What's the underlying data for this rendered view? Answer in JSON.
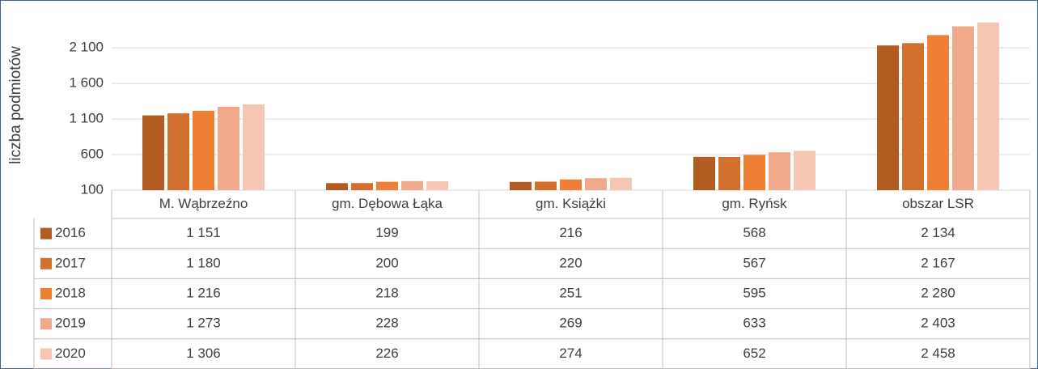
{
  "chart_data": {
    "type": "bar",
    "y_label": "liczba podmiotów",
    "categories": [
      "M. Wąbrzeźno",
      "gm. Dębowa Łąka",
      "gm. Książki",
      "gm. Ryńsk",
      "obszar LSR"
    ],
    "series": [
      {
        "name": "2016",
        "color": "#b35c22",
        "values": [
          1151,
          199,
          216,
          568,
          2134
        ],
        "value_labels": [
          "1 151",
          "199",
          "216",
          "568",
          "2 134"
        ]
      },
      {
        "name": "2017",
        "color": "#d2702e",
        "values": [
          1180,
          200,
          220,
          567,
          2167
        ],
        "value_labels": [
          "1 180",
          "200",
          "220",
          "567",
          "2 167"
        ]
      },
      {
        "name": "2018",
        "color": "#ef8033",
        "values": [
          1216,
          218,
          251,
          595,
          2280
        ],
        "value_labels": [
          "1 216",
          "218",
          "251",
          "595",
          "2 280"
        ]
      },
      {
        "name": "2019",
        "color": "#f1a98b",
        "values": [
          1273,
          228,
          269,
          633,
          2403
        ],
        "value_labels": [
          "1 273",
          "228",
          "269",
          "633",
          "2 403"
        ]
      },
      {
        "name": "2020",
        "color": "#f6c6b4",
        "values": [
          1306,
          226,
          274,
          652,
          2458
        ],
        "value_labels": [
          "1 306",
          "226",
          "274",
          "652",
          "2 458"
        ]
      }
    ],
    "ylim": [
      100,
      2500
    ],
    "yticks": [
      100,
      {
        "value": 600,
        "label": "600"
      },
      {
        "value": 1100,
        "label": "1 100"
      },
      {
        "value": 1600,
        "label": "1 600"
      },
      {
        "value": 2100,
        "label": "2 100"
      }
    ],
    "grid": true
  }
}
